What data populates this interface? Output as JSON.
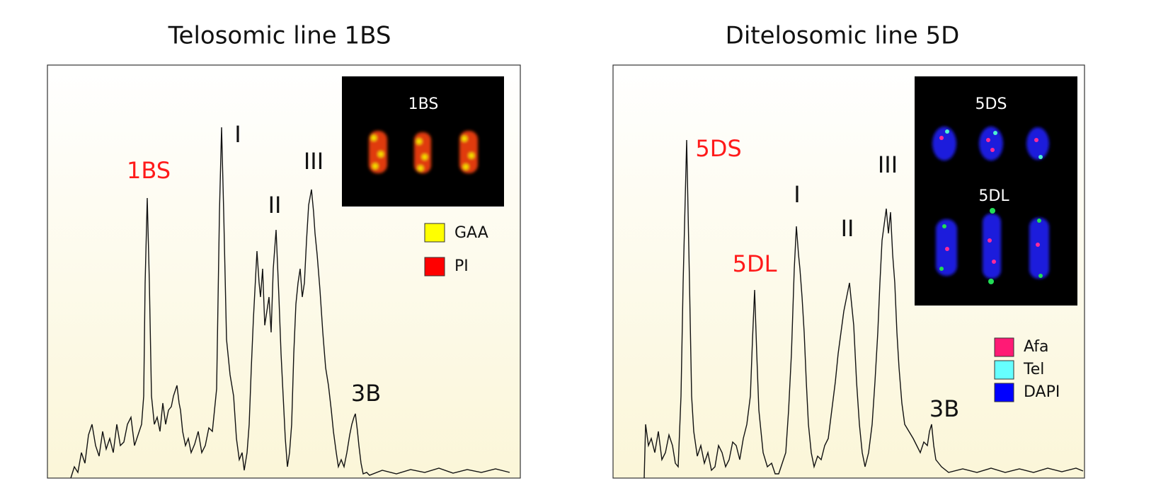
{
  "panels": [
    {
      "title": "Telosomic line 1BS",
      "peak_labels": [
        "1BS",
        "I",
        "II",
        "III",
        "3B"
      ],
      "inset": {
        "labels": [
          "1BS"
        ]
      },
      "legend": [
        "GAA",
        "PI"
      ]
    },
    {
      "title": "Ditelosomic line 5D",
      "peak_labels": [
        "5DS",
        "5DL",
        "I",
        "II",
        "III",
        "3B"
      ],
      "inset": {
        "labels": [
          "5DS",
          "5DL"
        ]
      },
      "legend": [
        "Afa",
        "Tel",
        "DAPI"
      ]
    }
  ]
}
